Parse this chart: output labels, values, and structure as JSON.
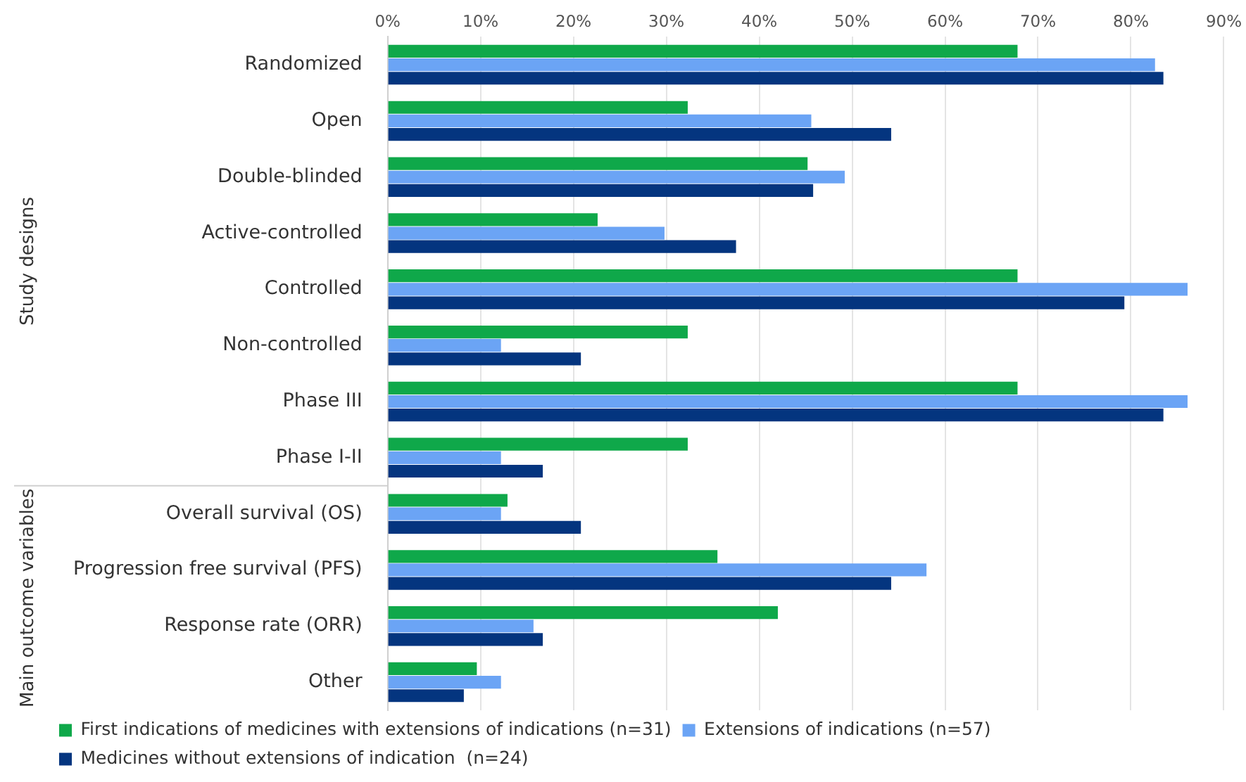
{
  "chart_data": {
    "type": "bar",
    "orientation": "horizontal",
    "categories": [
      "Randomized",
      "Open",
      "Double-blinded",
      "Active-controlled",
      "Controlled",
      "Non-controlled",
      "Phase III",
      "Phase I-II",
      "Overall survival (OS)",
      "Progression free survival (PFS)",
      "Response rate (ORR)",
      "Other"
    ],
    "series": [
      {
        "name": "First indications of medicines with extensions of indications (n=31)",
        "color": "#0fa84a",
        "values": [
          67.8,
          32.3,
          45.2,
          22.6,
          67.8,
          32.3,
          67.8,
          32.3,
          12.9,
          35.5,
          42.0,
          9.6
        ]
      },
      {
        "name": "Extensions of indications (n=57)",
        "color": "#6ba4f5",
        "values": [
          82.6,
          45.6,
          49.2,
          29.8,
          86.1,
          12.2,
          86.1,
          12.2,
          12.2,
          58.0,
          15.7,
          12.2
        ]
      },
      {
        "name": "Medicines without extensions of indication  (n=24)",
        "color": "#04357f",
        "values": [
          83.5,
          54.2,
          45.8,
          37.5,
          79.3,
          20.8,
          83.5,
          16.7,
          20.8,
          54.2,
          16.7,
          8.2
        ]
      }
    ],
    "xlim": [
      0,
      90
    ],
    "xticks": [
      {
        "value": 0,
        "label": "0%"
      },
      {
        "value": 10,
        "label": "10%"
      },
      {
        "value": 20,
        "label": "20%"
      },
      {
        "value": 30,
        "label": "30%"
      },
      {
        "value": 40,
        "label": "40%"
      },
      {
        "value": 50,
        "label": "50%"
      },
      {
        "value": 60,
        "label": "60%"
      },
      {
        "value": 70,
        "label": "70%"
      },
      {
        "value": 80,
        "label": "80%"
      },
      {
        "value": 90,
        "label": "90%"
      }
    ],
    "grid": "x",
    "legend": "bottom",
    "annotations": [
      "Study designs",
      "Main outcome variables"
    ]
  }
}
